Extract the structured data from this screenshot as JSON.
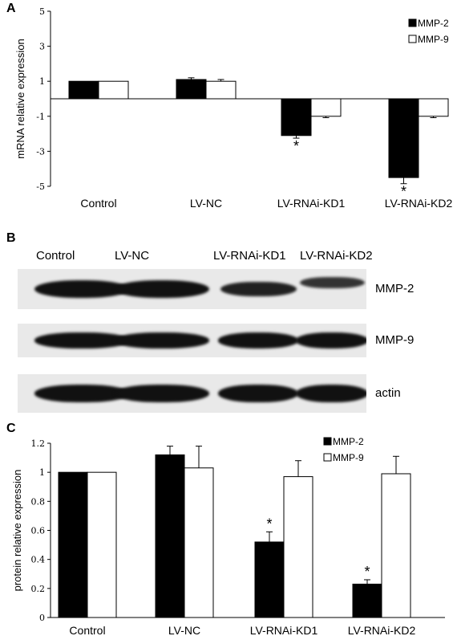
{
  "panel_a": {
    "letter": "A",
    "chart_data": {
      "type": "bar",
      "categories": [
        "Control",
        "LV-NC",
        "LV-RNAi-KD1",
        "LV-RNAi-KD2"
      ],
      "series": [
        {
          "name": "MMP-2",
          "color": "#000000",
          "values": [
            1.0,
            1.1,
            -2.1,
            -4.5
          ],
          "errors": [
            0.0,
            0.1,
            0.15,
            0.35
          ]
        },
        {
          "name": "MMP-9",
          "color": "#ffffff",
          "values": [
            1.0,
            1.0,
            -1.0,
            -1.0
          ],
          "errors": [
            0.0,
            0.1,
            0.08,
            0.08
          ]
        }
      ],
      "significant": [
        [
          false,
          false
        ],
        [
          false,
          false
        ],
        [
          true,
          false
        ],
        [
          true,
          false
        ]
      ],
      "ylabel": "mRNA relative expression",
      "ylim": [
        -5,
        5
      ],
      "yticks": [
        "5",
        "3",
        "1",
        "-1",
        "-3",
        "-5"
      ],
      "legend": "top-right",
      "marker": "*"
    }
  },
  "panel_b": {
    "letter": "B",
    "lanes": [
      "Control",
      "LV-NC",
      "LV-RNAi-KD1",
      "LV-RNAi-KD2"
    ],
    "blots": [
      {
        "name": "MMP-2",
        "intensity": [
          1.0,
          1.0,
          0.8,
          0.6
        ]
      },
      {
        "name": "MMP-9",
        "intensity": [
          1.0,
          1.0,
          1.0,
          1.0
        ]
      },
      {
        "name": "actin",
        "intensity": [
          1.0,
          1.0,
          1.0,
          1.0
        ]
      }
    ]
  },
  "panel_c": {
    "letter": "C",
    "chart_data": {
      "type": "bar",
      "categories": [
        "Control",
        "LV-NC",
        "LV-RNAi-KD1",
        "LV-RNAi-KD2"
      ],
      "series": [
        {
          "name": "MMP-2",
          "color": "#000000",
          "values": [
            1.0,
            1.12,
            0.52,
            0.23
          ],
          "errors": [
            0.0,
            0.06,
            0.07,
            0.03
          ]
        },
        {
          "name": "MMP-9",
          "color": "#ffffff",
          "values": [
            1.0,
            1.03,
            0.97,
            0.99
          ],
          "errors": [
            0.0,
            0.15,
            0.11,
            0.12
          ]
        }
      ],
      "significant": [
        [
          false,
          false
        ],
        [
          false,
          false
        ],
        [
          true,
          false
        ],
        [
          true,
          false
        ]
      ],
      "ylabel": "protein relative expression",
      "ylim": [
        0,
        1.2
      ],
      "yticks": [
        "0",
        "0.2",
        "0.4",
        "0.6",
        "0.8",
        "1",
        "1.2"
      ],
      "legend": "top-right",
      "marker": "*"
    }
  }
}
